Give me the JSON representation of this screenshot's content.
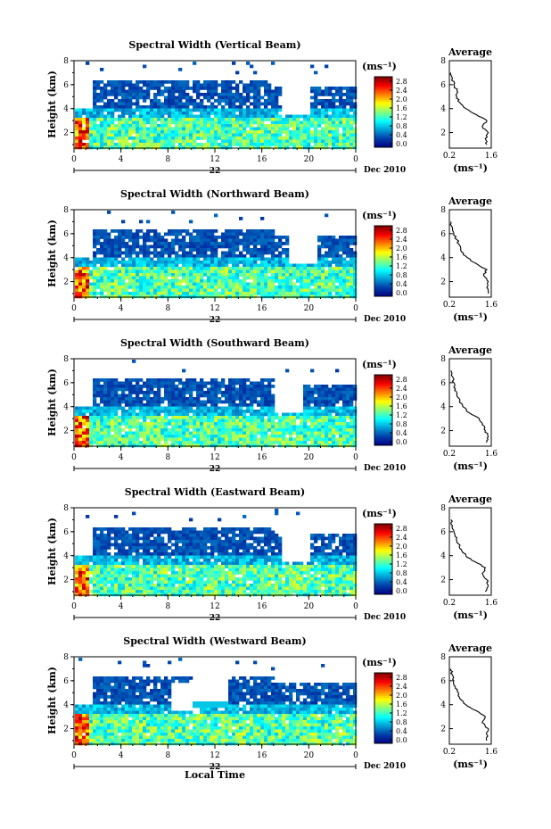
{
  "figure": {
    "time_axis_label": "Local Time",
    "date_label": "Dec 2010",
    "day_label": "22",
    "colorbar_units": "(ms⁻¹)",
    "profile_title": "Average",
    "profile_xlabel": "(ms⁻¹)",
    "height_label": "Height (km)"
  },
  "chart_data": [
    {
      "type": "heatmap",
      "title": "Spectral Width (Vertical Beam)",
      "xlabel": "",
      "ylabel": "Height (km)",
      "xticks": [
        "0",
        "4",
        "8",
        "12",
        "16",
        "20",
        "0"
      ],
      "xlim": [
        0,
        24
      ],
      "yticks": [
        "2",
        "4",
        "6",
        "8"
      ],
      "ylim": [
        0.7,
        8
      ],
      "colorbar": {
        "ticks": [
          "0.0",
          "0.4",
          "0.8",
          "1.2",
          "1.6",
          "2.0",
          "2.4",
          "2.8"
        ],
        "range": [
          0,
          3.0
        ]
      },
      "avg_profile": {
        "xticks": [
          "0.2",
          "1.6"
        ],
        "xlim": [
          0.2,
          1.6
        ],
        "heights": [
          1.0,
          1.5,
          2.0,
          2.5,
          3.0,
          3.5,
          4.0,
          4.5,
          5.0,
          5.5,
          6.0,
          6.5,
          7.0
        ],
        "values": [
          1.45,
          1.4,
          1.5,
          1.3,
          1.45,
          1.1,
          0.75,
          0.55,
          0.45,
          0.45,
          0.35,
          0.3,
          0.25
        ]
      },
      "gap_start_hour": 17.5
    },
    {
      "type": "heatmap",
      "title": "Spectral Width (Northward Beam)",
      "xlabel": "",
      "ylabel": "Height (km)",
      "xticks": [
        "0",
        "4",
        "8",
        "12",
        "16",
        "20",
        "0"
      ],
      "xlim": [
        0,
        24
      ],
      "yticks": [
        "2",
        "4",
        "6",
        "8"
      ],
      "ylim": [
        0.7,
        8
      ],
      "colorbar": {
        "ticks": [
          "0.0",
          "0.4",
          "0.8",
          "1.2",
          "1.6",
          "2.0",
          "2.4",
          "2.8"
        ],
        "range": [
          0,
          3.0
        ]
      },
      "avg_profile": {
        "xticks": [
          "0.2",
          "1.6"
        ],
        "xlim": [
          0.2,
          1.6
        ],
        "heights": [
          1.0,
          1.5,
          2.0,
          2.5,
          3.0,
          3.5,
          4.0,
          4.5,
          5.0,
          5.5,
          6.0,
          6.5,
          7.0
        ],
        "values": [
          1.5,
          1.45,
          1.5,
          1.35,
          1.45,
          1.1,
          0.8,
          0.6,
          0.55,
          0.45,
          0.35,
          0.3,
          0.25
        ]
      },
      "gap_start_hour": 18.0
    },
    {
      "type": "heatmap",
      "title": "Spectral Width (Southward Beam)",
      "xlabel": "",
      "ylabel": "Height (km)",
      "xticks": [
        "0",
        "4",
        "8",
        "12",
        "16",
        "20",
        "0"
      ],
      "xlim": [
        0,
        24
      ],
      "yticks": [
        "2",
        "4",
        "6",
        "8"
      ],
      "ylim": [
        0.7,
        8
      ],
      "colorbar": {
        "ticks": [
          "0.0",
          "0.4",
          "0.8",
          "1.2",
          "1.6",
          "2.0",
          "2.4",
          "2.8"
        ],
        "range": [
          0,
          3.0
        ]
      },
      "avg_profile": {
        "xticks": [
          "0.2",
          "1.6"
        ],
        "xlim": [
          0.2,
          1.6
        ],
        "heights": [
          1.0,
          1.5,
          2.0,
          2.5,
          3.0,
          3.5,
          4.0,
          4.5,
          5.0,
          5.5,
          6.0,
          6.5,
          7.0
        ],
        "values": [
          1.45,
          1.5,
          1.4,
          1.3,
          1.2,
          0.85,
          0.65,
          0.55,
          0.45,
          0.4,
          0.35,
          0.3,
          0.25
        ]
      },
      "gap_start_hour": 17.0
    },
    {
      "type": "heatmap",
      "title": "Spectral Width (Eastward Beam)",
      "xlabel": "",
      "ylabel": "Height (km)",
      "xticks": [
        "0",
        "4",
        "8",
        "12",
        "16",
        "20",
        "0"
      ],
      "xlim": [
        0,
        24
      ],
      "yticks": [
        "2",
        "4",
        "6",
        "8"
      ],
      "ylim": [
        0.7,
        8
      ],
      "colorbar": {
        "ticks": [
          "0.0",
          "0.4",
          "0.8",
          "1.2",
          "1.6",
          "2.0",
          "2.4",
          "2.8"
        ],
        "range": [
          0,
          3.0
        ]
      },
      "avg_profile": {
        "xticks": [
          "0.2",
          "1.6"
        ],
        "xlim": [
          0.2,
          1.6
        ],
        "heights": [
          1.0,
          1.5,
          2.0,
          2.5,
          3.0,
          3.5,
          4.0,
          4.5,
          5.0,
          5.5,
          6.0,
          6.5,
          7.0
        ],
        "values": [
          1.4,
          1.5,
          1.45,
          1.3,
          1.4,
          1.05,
          0.75,
          0.6,
          0.5,
          0.45,
          0.35,
          0.3,
          0.25
        ]
      },
      "gap_start_hour": 17.5
    },
    {
      "type": "heatmap",
      "title": "Spectral Width (Westward Beam)",
      "xlabel": "Local Time",
      "ylabel": "Height (km)",
      "xticks": [
        "0",
        "4",
        "8",
        "12",
        "16",
        "20",
        "0"
      ],
      "xlim": [
        0,
        24
      ],
      "yticks": [
        "2",
        "4",
        "6",
        "8"
      ],
      "ylim": [
        0.7,
        8
      ],
      "colorbar": {
        "ticks": [
          "0.0",
          "0.4",
          "0.8",
          "1.2",
          "1.6",
          "2.0",
          "2.4",
          "2.8"
        ],
        "range": [
          0,
          3.0
        ]
      },
      "avg_profile": {
        "xticks": [
          "0.2",
          "1.6"
        ],
        "xlim": [
          0.2,
          1.6
        ],
        "heights": [
          1.0,
          1.5,
          2.0,
          2.5,
          3.0,
          3.5,
          4.0,
          4.5,
          5.0,
          5.5,
          6.0,
          6.5,
          7.0
        ],
        "values": [
          1.45,
          1.45,
          1.5,
          1.3,
          1.4,
          1.1,
          0.75,
          0.55,
          0.5,
          0.4,
          0.35,
          0.3,
          0.25
        ]
      },
      "gap_start_hour": 8.0
    }
  ]
}
